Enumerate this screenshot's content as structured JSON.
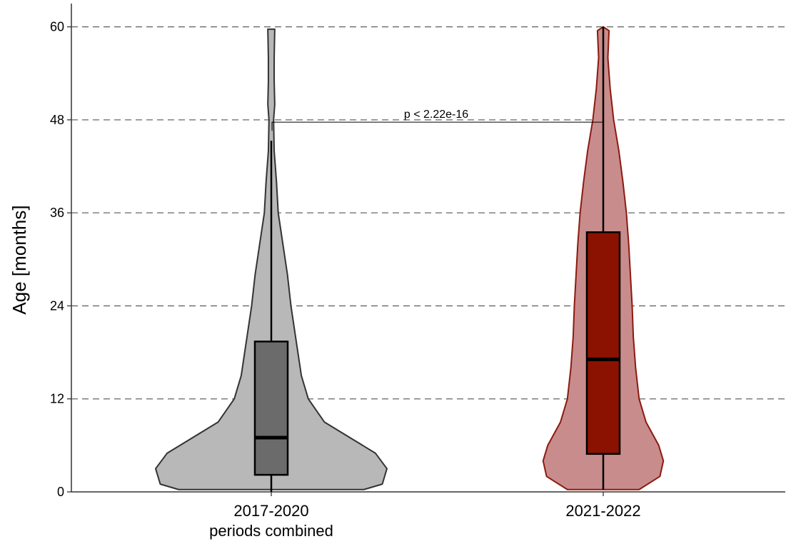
{
  "chart_data": {
    "type": "violin",
    "ylabel": "Age [months]",
    "categories": [
      "2017-2020",
      "2021-2022"
    ],
    "category_sublabels": [
      "periods combined",
      null
    ],
    "ylim": [
      0,
      63
    ],
    "yticks": [
      0,
      12,
      24,
      36,
      48,
      60
    ],
    "grid": true,
    "groups": [
      {
        "fill": "#b8b8b8",
        "stroke": "#333333",
        "box_fill": "#6b6b6b",
        "whisker_low": 0,
        "q1": 2.2,
        "median": 7.0,
        "q3": 19.4,
        "whisker_high": 45.3,
        "violin_y": [
          0.3,
          1,
          3,
          5,
          7,
          9,
          12,
          15,
          20,
          24,
          28,
          32,
          36,
          40,
          44,
          48,
          50,
          53,
          56,
          59.7
        ],
        "violin_width": [
          0.8,
          0.96,
          1,
          0.9,
          0.68,
          0.46,
          0.32,
          0.26,
          0.21,
          0.17,
          0.14,
          0.1,
          0.06,
          0.045,
          0.025,
          0.02,
          0.03,
          0.025,
          0.025,
          0.03
        ]
      },
      {
        "fill": "#c98c8c",
        "stroke": "#8b1a10",
        "box_fill": "#8b1200",
        "whisker_low": 0.3,
        "q1": 4.9,
        "median": 17.1,
        "q3": 33.5,
        "whisker_high": 60,
        "violin_y": [
          0.3,
          2,
          4,
          6,
          9,
          12,
          16,
          20,
          24,
          28,
          32,
          36,
          40,
          44,
          48,
          52,
          56,
          59.5,
          60
        ],
        "violin_width": [
          0.31,
          0.49,
          0.52,
          0.48,
          0.37,
          0.31,
          0.28,
          0.26,
          0.25,
          0.235,
          0.22,
          0.2,
          0.17,
          0.135,
          0.09,
          0.06,
          0.04,
          0.05,
          0
        ]
      }
    ],
    "annotation": {
      "text": "p < 2.22e-16",
      "y": 47.7
    }
  }
}
